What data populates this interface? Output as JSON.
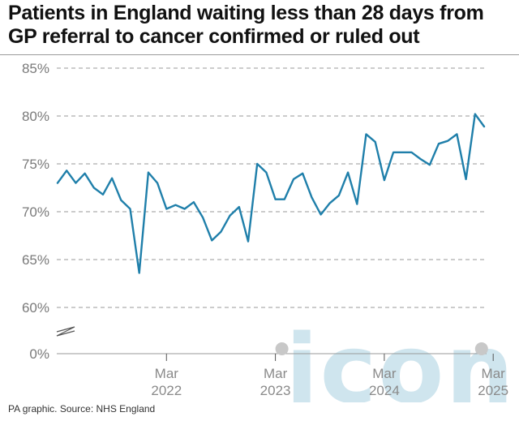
{
  "title_lines": [
    "Patients in England waiting less than 28 days from",
    "GP referral to cancer confirmed or ruled out"
  ],
  "source": "PA graphic. Source: NHS England",
  "watermark": "iconic",
  "colors": {
    "line": "#1f7faa",
    "grid": "#9a9a9a",
    "axis_text": "#7a7a7a",
    "tick_text": "#8a8a8a",
    "marker": "#c8c8c8",
    "watermark": "#cfe5ee"
  },
  "chart_data": {
    "type": "line",
    "title": "Patients in England waiting less than 28 days from GP referral to cancer confirmed or ruled out",
    "xlabel": "",
    "ylabel": "",
    "yticks": [
      "85%",
      "80%",
      "75%",
      "70%",
      "65%",
      "60%",
      "0%"
    ],
    "ytick_values": [
      85,
      80,
      75,
      70,
      65,
      60,
      0
    ],
    "y_axis_break": "between 0% and 60%",
    "grid": "horizontal dashed",
    "xticks": [
      {
        "month": "Mar",
        "year": "2022",
        "index": 12
      },
      {
        "month": "Mar",
        "year": "2023",
        "index": 24
      },
      {
        "month": "Mar",
        "year": "2024",
        "index": 36
      },
      {
        "month": "Mar",
        "year": "2025",
        "index": 48
      }
    ],
    "start_month": "Mar 2021",
    "series": [
      {
        "values": [
          73.0,
          74.3,
          73.0,
          74.0,
          72.5,
          71.8,
          73.5,
          71.2,
          70.3,
          63.6,
          74.1,
          73.0,
          70.3,
          70.7,
          70.3,
          71.0,
          69.4,
          67.0,
          67.9,
          69.6,
          70.5,
          66.9,
          75.0,
          74.1,
          71.3,
          71.3,
          73.4,
          74.0,
          71.5,
          69.7,
          70.9,
          71.7,
          74.1,
          70.8,
          78.1,
          77.3,
          73.3,
          76.2,
          76.2,
          76.2,
          75.5,
          74.9,
          77.1,
          77.4,
          78.1,
          73.4,
          80.2,
          78.9
        ]
      }
    ],
    "highlight_markers_at_index": [
      24,
      46
    ]
  }
}
